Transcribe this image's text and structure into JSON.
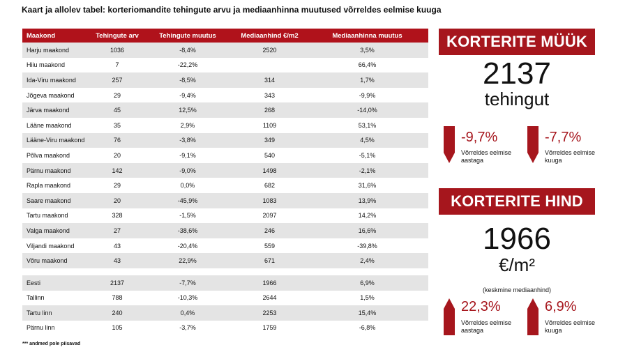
{
  "title": "Kaart ja allolev tabel: korteriomandite tehingute arvu ja mediaanhinna muutused võrreldes eelmise kuuga",
  "table": {
    "headers": [
      "Maakond",
      "Tehingute arv",
      "Tehingute muutus",
      "Mediaanhind €/m2",
      "Mediaanhinna muutus"
    ],
    "rows": [
      [
        "Harju maakond",
        "1036",
        "-8,4%",
        "2520",
        "3,5%"
      ],
      [
        "Hiiu maakond",
        "7",
        "-22,2%",
        "",
        "66,4%"
      ],
      [
        "Ida-Viru maakond",
        "257",
        "-8,5%",
        "314",
        "1,7%"
      ],
      [
        "Jõgeva maakond",
        "29",
        "-9,4%",
        "343",
        "-9,9%"
      ],
      [
        "Järva maakond",
        "45",
        "12,5%",
        "268",
        "-14,0%"
      ],
      [
        "Lääne maakond",
        "35",
        "2,9%",
        "1109",
        "53,1%"
      ],
      [
        "Lääne-Viru maakond",
        "76",
        "-3,8%",
        "349",
        "4,5%"
      ],
      [
        "Põlva maakond",
        "20",
        "-9,1%",
        "540",
        "-5,1%"
      ],
      [
        "Pärnu maakond",
        "142",
        "-9,0%",
        "1498",
        "-2,1%"
      ],
      [
        "Rapla maakond",
        "29",
        "0,0%",
        "682",
        "31,6%"
      ],
      [
        "Saare maakond",
        "20",
        "-45,9%",
        "1083",
        "13,9%"
      ],
      [
        "Tartu maakond",
        "328",
        "-1,5%",
        "2097",
        "14,2%"
      ],
      [
        "Valga maakond",
        "27",
        "-38,6%",
        "246",
        "16,6%"
      ],
      [
        "Viljandi maakond",
        "43",
        "-20,4%",
        "559",
        "-39,8%"
      ],
      [
        "Võru maakond",
        "43",
        "22,9%",
        "671",
        "2,4%"
      ]
    ],
    "summary_rows": [
      [
        "Eesti",
        "2137",
        "-7,7%",
        "1966",
        "6,9%"
      ],
      [
        "Tallinn",
        "788",
        "-10,3%",
        "2644",
        "1,5%"
      ],
      [
        "Tartu linn",
        "240",
        "0,4%",
        "2253",
        "15,4%"
      ],
      [
        "Pärnu linn",
        "105",
        "-3,7%",
        "1759",
        "-6,8%"
      ]
    ]
  },
  "footnote": "*** andmed pole piisavad",
  "sales_panel": {
    "banner": "KORTERITE MÜÜK",
    "value": "2137",
    "unit": "tehingut",
    "change_year": "-9,7%",
    "change_year_caption_1": "Võrreldes eelmise",
    "change_year_caption_2": "aastaga",
    "change_month": "-7,7%",
    "change_month_caption_1": "Võrreldes eelmise",
    "change_month_caption_2": "kuuga"
  },
  "price_panel": {
    "banner": "KORTERITE HIND",
    "value": "1966",
    "unit": "€/m²",
    "note": "(keskmine mediaanhind)",
    "change_year": "22,3%",
    "change_year_caption_1": "Võrreldes eelmise",
    "change_year_caption_2": "aastaga",
    "change_month": "6,9%",
    "change_month_caption_1": "Võrreldes eelmise",
    "change_month_caption_2": "kuuga"
  },
  "colors": {
    "accent": "#a6161d",
    "header_red": "#b0121b",
    "row_stripe": "#e4e4e4"
  },
  "icons": {
    "decrease": "arrow-down-icon",
    "increase": "arrow-up-icon"
  }
}
